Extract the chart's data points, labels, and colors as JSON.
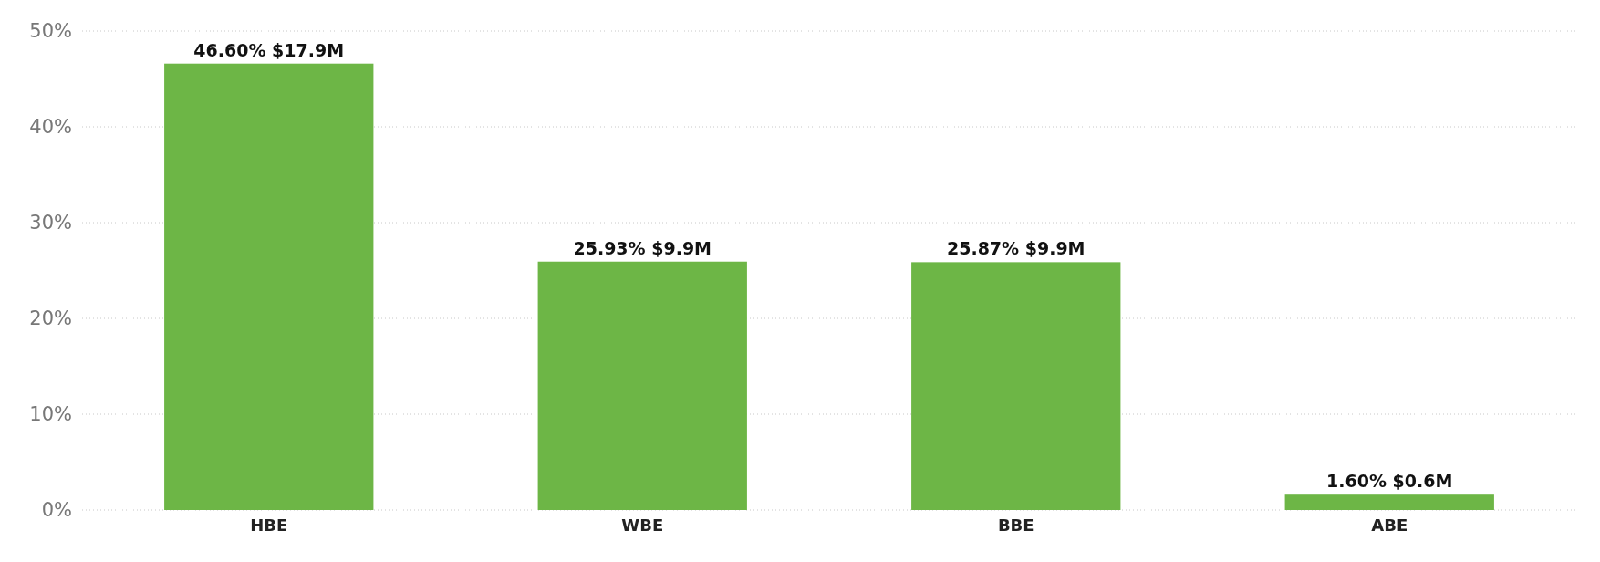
{
  "chart_data": {
    "type": "bar",
    "categories": [
      "HBE",
      "WBE",
      "BBE",
      "ABE"
    ],
    "values": [
      46.6,
      25.93,
      25.87,
      1.6
    ],
    "value_labels": [
      "46.60% $17.9M",
      "25.93% $9.9M",
      "25.87% $9.9M",
      "1.60% $0.6M"
    ],
    "color": "#6db646",
    "ylim": [
      0,
      50
    ],
    "yticks": [
      {
        "value": 0,
        "label": "0%"
      },
      {
        "value": 10,
        "label": "10%"
      },
      {
        "value": 20,
        "label": "20%"
      },
      {
        "value": 30,
        "label": "30%"
      },
      {
        "value": 40,
        "label": "40%"
      },
      {
        "value": 50,
        "label": "50%"
      }
    ],
    "grid": "y"
  }
}
